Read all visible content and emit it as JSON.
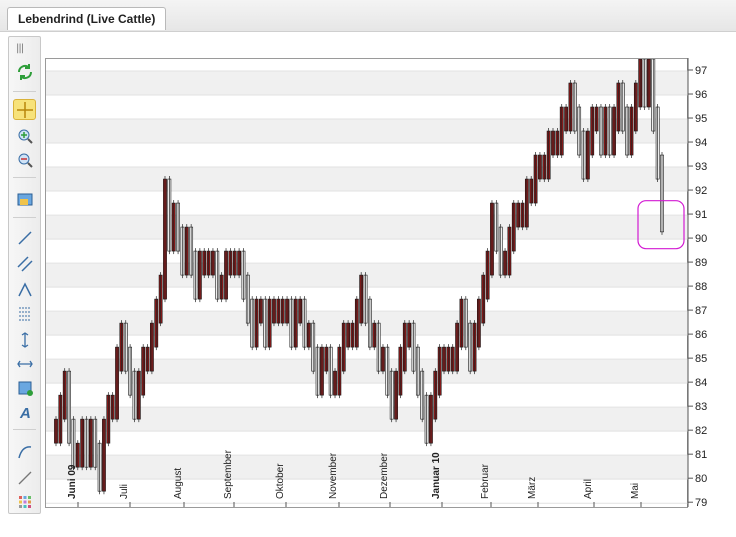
{
  "tab": {
    "label": "Lebendrind (Live Cattle)"
  },
  "toolbar": {
    "items": [
      "refresh-icon",
      "crosshair-icon",
      "zoom-in-icon",
      "zoom-out-icon",
      "chart-settings-icon",
      "trend-line-icon",
      "channel-icon",
      "triangle-icon",
      "fibonacci-icon",
      "vertical-measure-icon",
      "horizontal-measure-icon",
      "rectangle-icon",
      "text-icon",
      "arc-icon",
      "line-icon",
      "color-grid-icon"
    ]
  },
  "chart_data": {
    "type": "bar",
    "title": "",
    "ylim": [
      78.8,
      97.5
    ],
    "yticks": [
      79,
      80,
      81,
      82,
      83,
      84,
      85,
      86,
      87,
      88,
      89,
      90,
      91,
      92,
      93,
      94,
      95,
      96,
      97
    ],
    "xticks": [
      {
        "label": "Juni 09",
        "bold": true
      },
      {
        "label": "Juli",
        "bold": false
      },
      {
        "label": "August",
        "bold": false
      },
      {
        "label": "September",
        "bold": false
      },
      {
        "label": "Oktober",
        "bold": false
      },
      {
        "label": "November",
        "bold": false
      },
      {
        "label": "Dezember",
        "bold": false
      },
      {
        "label": "Januar 10",
        "bold": true
      },
      {
        "label": "Februar",
        "bold": false
      },
      {
        "label": "März",
        "bold": false
      },
      {
        "label": "April",
        "bold": false
      },
      {
        "label": "Mai",
        "bold": false
      }
    ],
    "series": [
      {
        "values": [
          82,
          83,
          84,
          82,
          81,
          81,
          82,
          81,
          82,
          81,
          80,
          82,
          83,
          83,
          85,
          86,
          85,
          84,
          83,
          84,
          85,
          85,
          86,
          87,
          88,
          92,
          90,
          91,
          90,
          89,
          90,
          89,
          88,
          89,
          89,
          89,
          89,
          88,
          88,
          89,
          89,
          89,
          89,
          88,
          87,
          86,
          87,
          87,
          86,
          87,
          87,
          87,
          87,
          87,
          86,
          87,
          87,
          86,
          86,
          85,
          84,
          85,
          85,
          84,
          84,
          85,
          86,
          86,
          86,
          87,
          88,
          87,
          86,
          86,
          85,
          85,
          84,
          83,
          84,
          85,
          86,
          86,
          85,
          84,
          83,
          82,
          83,
          84,
          85,
          85,
          85,
          85,
          86,
          87,
          86,
          85,
          86,
          87,
          88,
          89,
          91,
          90,
          89,
          89,
          90,
          91,
          91,
          91,
          92,
          92,
          93,
          93,
          93,
          94,
          94,
          94,
          95,
          95,
          96,
          95,
          94,
          93,
          94,
          95,
          95,
          94,
          95,
          94,
          95,
          96,
          95,
          94,
          95,
          96,
          97,
          96,
          97,
          95,
          93,
          90.8
        ]
      }
    ],
    "highlight": {
      "ymin": 89.6,
      "ymax": 91.6,
      "color": "#d21ad2"
    },
    "up_color": "#8b1a1a",
    "down_color": "#111111",
    "band_color": "#f0f0f0"
  }
}
